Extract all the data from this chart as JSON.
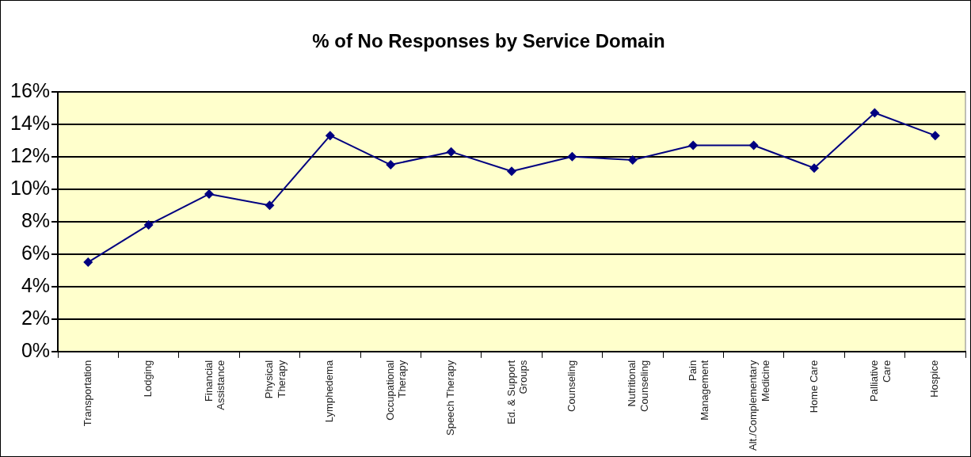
{
  "chart_data": {
    "type": "line",
    "title": "% of No Responses by Service Domain",
    "categories": [
      "Transportation",
      "Lodging",
      "Financial Assistance",
      "Physical Therapy",
      "Lymphedema",
      "Occupational Therapy",
      "Speech Therapy",
      "Ed. & Support Groups",
      "Counseling",
      "Nutritional Counseling",
      "Pain Management",
      "Alt./Complementary Medicine",
      "Home Care",
      "Palliative Care",
      "Hospice"
    ],
    "series": [
      {
        "color": "#000080",
        "values": [
          5.5,
          7.8,
          9.7,
          9.0,
          13.3,
          11.5,
          12.3,
          11.1,
          12.0,
          11.8,
          12.7,
          12.7,
          11.3,
          14.7,
          13.3
        ]
      }
    ],
    "ylim": [
      0,
      16
    ],
    "yticks": [
      {
        "value": 0,
        "label": "0%"
      },
      {
        "value": 2,
        "label": "2%"
      },
      {
        "value": 4,
        "label": "4%"
      },
      {
        "value": 6,
        "label": "6%"
      },
      {
        "value": 8,
        "label": "8%"
      },
      {
        "value": 10,
        "label": "10%"
      },
      {
        "value": 12,
        "label": "12%"
      },
      {
        "value": 14,
        "label": "14%"
      },
      {
        "value": 16,
        "label": "16%"
      }
    ],
    "grid": "y",
    "legend": false,
    "marker": "diamond",
    "line_style": "solid"
  }
}
